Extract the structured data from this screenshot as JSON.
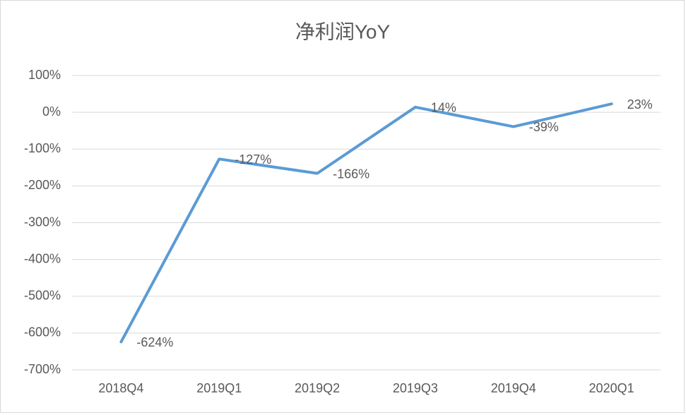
{
  "chart_data": {
    "type": "line",
    "title": "净利润YoY",
    "categories": [
      "2018Q4",
      "2019Q1",
      "2019Q2",
      "2019Q3",
      "2019Q4",
      "2020Q1"
    ],
    "series": [
      {
        "name": "净利润YoY",
        "color": "#5b9bd5",
        "values": [
          -624,
          -127,
          -166,
          14,
          -39,
          23
        ],
        "value_labels": [
          "-624%",
          "-127%",
          "-166%",
          "14%",
          "-39%",
          "23%"
        ]
      }
    ],
    "ylim": [
      -700,
      100
    ],
    "yticks": [
      {
        "value": -700,
        "label": "-700%"
      },
      {
        "value": -600,
        "label": "-600%"
      },
      {
        "value": -500,
        "label": "-500%"
      },
      {
        "value": -400,
        "label": "-400%"
      },
      {
        "value": -300,
        "label": "-300%"
      },
      {
        "value": -200,
        "label": "-200%"
      },
      {
        "value": -100,
        "label": "-100%"
      },
      {
        "value": 0,
        "label": "0%"
      },
      {
        "value": 100,
        "label": "100%"
      }
    ],
    "grid": true
  }
}
